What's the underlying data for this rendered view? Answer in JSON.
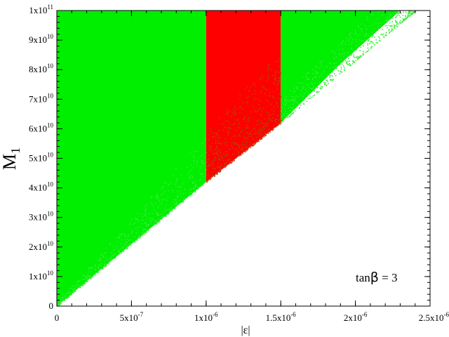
{
  "chart_data": {
    "type": "scatter",
    "xlabel": "|ε|",
    "ylabel_main": "M",
    "ylabel_sub": "1",
    "xlim": [
      0,
      2.5e-06
    ],
    "ylim": [
      0,
      100000000000.0
    ],
    "grid": false,
    "annotation": {
      "prefix": "tan",
      "symbol": "β",
      "suffix": " = 3",
      "position": "bottom-right"
    },
    "x_ticks": [
      {
        "value": 0,
        "mantissa": "0",
        "exp": ""
      },
      {
        "value": 5e-07,
        "mantissa": "5x10",
        "exp": "-7"
      },
      {
        "value": 1e-06,
        "mantissa": "1x10",
        "exp": "-6"
      },
      {
        "value": 1.5e-06,
        "mantissa": "1.5x10",
        "exp": "-6"
      },
      {
        "value": 2e-06,
        "mantissa": "2x10",
        "exp": "-6"
      },
      {
        "value": 2.5e-06,
        "mantissa": "2.5x10",
        "exp": "-6"
      }
    ],
    "y_ticks": [
      {
        "value": 0,
        "mantissa": "0",
        "exp": ""
      },
      {
        "value": 10000000000.0,
        "mantissa": "1x10",
        "exp": "10"
      },
      {
        "value": 20000000000.0,
        "mantissa": "2x10",
        "exp": "10"
      },
      {
        "value": 30000000000.0,
        "mantissa": "3x10",
        "exp": "10"
      },
      {
        "value": 40000000000.0,
        "mantissa": "4x10",
        "exp": "10"
      },
      {
        "value": 50000000000.0,
        "mantissa": "5x10",
        "exp": "10"
      },
      {
        "value": 60000000000.0,
        "mantissa": "6x10",
        "exp": "10"
      },
      {
        "value": 70000000000.0,
        "mantissa": "7x10",
        "exp": "10"
      },
      {
        "value": 80000000000.0,
        "mantissa": "8x10",
        "exp": "10"
      },
      {
        "value": 90000000000.0,
        "mantissa": "9x10",
        "exp": "10"
      },
      {
        "value": 100000000000.0,
        "mantissa": "1x10",
        "exp": "11"
      }
    ],
    "regions": [
      {
        "color": "#00ee00",
        "polygon": [
          [
            0,
            0
          ],
          [
            1e-06,
            42000000000.0
          ],
          [
            1e-06,
            100000000000.0
          ],
          [
            0,
            100000000000.0
          ]
        ]
      },
      {
        "color": "#ff0000",
        "polygon": [
          [
            1e-06,
            42000000000.0
          ],
          [
            1.5e-06,
            62000000000.0
          ],
          [
            1.5e-06,
            100000000000.0
          ],
          [
            1e-06,
            100000000000.0
          ]
        ]
      },
      {
        "color": "#00ee00",
        "polygon": [
          [
            1.5e-06,
            62000000000.0
          ],
          [
            1.9e-06,
            82000000000.0
          ],
          [
            2.3e-06,
            100000000000.0
          ],
          [
            1.5e-06,
            100000000000.0
          ]
        ]
      }
    ],
    "boundary_bands": [
      {
        "color": "#33ee33",
        "x_range": [
          0,
          1e-06
        ],
        "y_at": [
          0,
          42000000000.0
        ],
        "slope_hi_factor": 1.35
      },
      {
        "color": "#b8420a",
        "x_range": [
          1e-06,
          1.5e-06
        ],
        "y_at": [
          42000000000.0,
          62000000000.0
        ],
        "slope_hi_factor": 1.38
      },
      {
        "color": "#33ee33",
        "x_range": [
          1.5e-06,
          2.4e-06
        ],
        "y_at": [
          62000000000.0,
          100000000000.0
        ],
        "slope_hi_factor": 1.12
      }
    ],
    "colors": {
      "green": "#00ee00",
      "red": "#ff0000",
      "brown": "#b8420a"
    }
  }
}
